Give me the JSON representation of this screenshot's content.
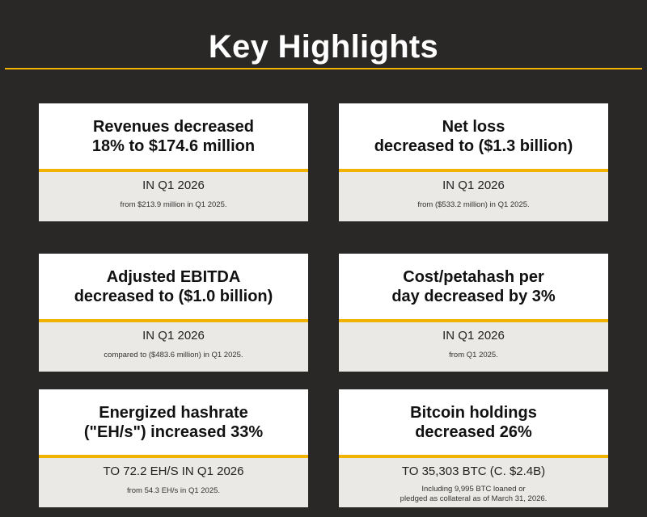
{
  "title": "Key Highlights",
  "cards": [
    {
      "head_line1": "Revenues decreased",
      "head_line2": "18% to $174.6 million",
      "sub": "IN Q1 2026",
      "note_line1": "from $213.9 million in Q1 2025.",
      "note_line2": ""
    },
    {
      "head_line1": "Net loss",
      "head_line2": "decreased to ($1.3 billion)",
      "sub": "IN Q1 2026",
      "note_line1": "from ($533.2 million) in Q1 2025.",
      "note_line2": ""
    },
    {
      "head_line1": "Adjusted EBITDA",
      "head_line2": "decreased to ($1.0 billion)",
      "sub": "IN Q1 2026",
      "note_line1": "compared to ($483.6 million) in Q1 2025.",
      "note_line2": ""
    },
    {
      "head_line1": "Cost/petahash per",
      "head_line2": "day decreased by 3%",
      "sub": "IN Q1 2026",
      "note_line1": "from Q1 2025.",
      "note_line2": ""
    },
    {
      "head_line1": "Energized hashrate",
      "head_line2": "(\"EH/s\") increased 33%",
      "sub": "TO 72.2 EH/S IN Q1 2026",
      "note_line1": "from 54.3 EH/s in Q1 2025.",
      "note_line2": ""
    },
    {
      "head_line1": "Bitcoin holdings",
      "head_line2": "decreased 26%",
      "sub": "TO 35,303 BTC (C. $2.4B)",
      "note_line1": "Including 9,995 BTC loaned or",
      "note_line2": "pledged as collateral as of March 31, 2026."
    }
  ],
  "colors": {
    "background": "#2a2827",
    "accent": "#f1b300",
    "card_head": "#ffffff",
    "card_body": "#ebe9e6"
  }
}
